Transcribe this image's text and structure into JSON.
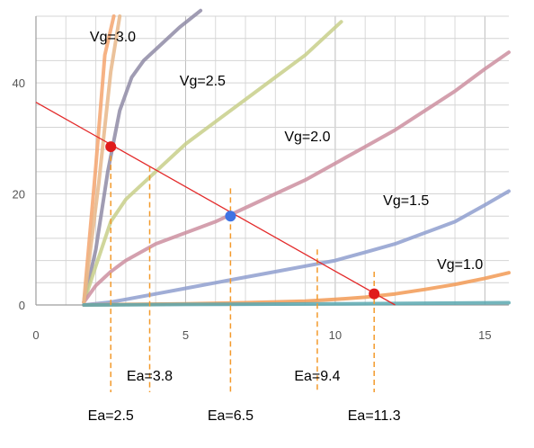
{
  "chart_data": {
    "type": "line",
    "title": "",
    "xlabel": "",
    "ylabel": "",
    "xlim": [
      0,
      15.8
    ],
    "ylim": [
      0,
      52
    ],
    "x_ticks": [
      0,
      5,
      10,
      15
    ],
    "y_ticks": [
      0,
      20,
      40
    ],
    "grid": true,
    "series": [
      {
        "name": "Vg=3.0",
        "color": "#8f8ba6",
        "x": [
          1.6,
          2.0,
          2.4,
          2.8,
          3.2,
          3.6,
          4.2,
          4.8,
          5.5
        ],
        "y": [
          0.5,
          10,
          24,
          35,
          41,
          44,
          47,
          50,
          53
        ]
      },
      {
        "name": "Vg=2.5",
        "color": "#c8cf8a",
        "x": [
          1.6,
          2.0,
          2.5,
          3.0,
          4.0,
          5.0,
          6.0,
          7.0,
          8.0,
          9.0,
          10.2
        ],
        "y": [
          0.5,
          7,
          15,
          19,
          24,
          29,
          33,
          37,
          41,
          45,
          51
        ]
      },
      {
        "name": "Vg=2.0",
        "color": "#cc8fa0",
        "x": [
          1.6,
          2.0,
          2.5,
          3.0,
          4.0,
          5.0,
          6.0,
          7.0,
          8.0,
          9.0,
          10.0,
          11.0,
          12.0,
          13.0,
          14.0,
          15.0,
          15.8
        ],
        "y": [
          0.5,
          3.5,
          6,
          8,
          11,
          13,
          15,
          17.5,
          20,
          22.5,
          25.5,
          28.5,
          31.5,
          35,
          38.5,
          42.5,
          45.5
        ]
      },
      {
        "name": "Vg=1.5",
        "color": "#8f9fcf",
        "x": [
          1.6,
          2.5,
          3.0,
          4.0,
          5.0,
          6.0,
          7.0,
          8.0,
          9.0,
          10.0,
          11.0,
          12.0,
          13.0,
          14.0,
          15.0,
          15.8
        ],
        "y": [
          0,
          0.5,
          1,
          2,
          3,
          4,
          5,
          6,
          7,
          8,
          9.5,
          11,
          13,
          15,
          18,
          20.5
        ]
      },
      {
        "name": "Vg=1.0",
        "color": "#f29a55",
        "x": [
          1.6,
          3.0,
          5.0,
          7.0,
          9.0,
          10.0,
          11.0,
          12.0,
          13.0,
          14.0,
          15.0,
          15.8
        ],
        "y": [
          0,
          0.1,
          0.2,
          0.4,
          0.7,
          1,
          1.4,
          2,
          2.8,
          3.7,
          4.8,
          5.8
        ]
      },
      {
        "name": "",
        "color": "#f4a46e",
        "x": [
          1.6,
          2.0,
          2.3,
          2.6
        ],
        "y": [
          0.5,
          25,
          45,
          52
        ]
      },
      {
        "name": "",
        "color": "#e8b78a",
        "x": [
          1.6,
          2.1,
          2.5,
          2.8
        ],
        "y": [
          0.5,
          22,
          42,
          52
        ]
      },
      {
        "name": "",
        "color": "#5aa8b0",
        "x": [
          1.6,
          5.0,
          10.0,
          15.8
        ],
        "y": [
          0,
          0.1,
          0.2,
          0.4
        ]
      }
    ],
    "load_line": {
      "color": "#e32b2b",
      "x": [
        0,
        12.0
      ],
      "y": [
        36.5,
        0
      ]
    },
    "operating_points": [
      {
        "x": 2.5,
        "y": 28.5,
        "color": "#e01b1b"
      },
      {
        "x": 6.5,
        "y": 16.0,
        "color": "#3f73e3"
      },
      {
        "x": 11.3,
        "y": 2.0,
        "color": "#e01b1b"
      }
    ],
    "guide_lines": [
      {
        "x": 2.5,
        "y_top": 28.5,
        "label": "Ea=2.5",
        "label_row": 2
      },
      {
        "x": 3.8,
        "y_top": 25.0,
        "label": "Ea=3.8",
        "label_row": 1
      },
      {
        "x": 6.5,
        "y_top": 21.0,
        "label": "Ea=6.5",
        "label_row": 2
      },
      {
        "x": 9.4,
        "y_top": 10.0,
        "label": "Ea=9.4",
        "label_row": 1
      },
      {
        "x": 11.3,
        "y_top": 6.0,
        "label": "Ea=11.3",
        "label_row": 2
      }
    ],
    "guide_color": "#f39a2b",
    "curve_labels": [
      {
        "text": "Vg=3.0",
        "x": 1.8,
        "y": 47.5
      },
      {
        "text": "Vg=2.5",
        "x": 4.8,
        "y": 39.5
      },
      {
        "text": "Vg=2.0",
        "x": 8.3,
        "y": 29.5
      },
      {
        "text": "Vg=1.5",
        "x": 11.6,
        "y": 18.0
      },
      {
        "text": "Vg=1.0",
        "x": 13.4,
        "y": 6.5
      }
    ]
  }
}
